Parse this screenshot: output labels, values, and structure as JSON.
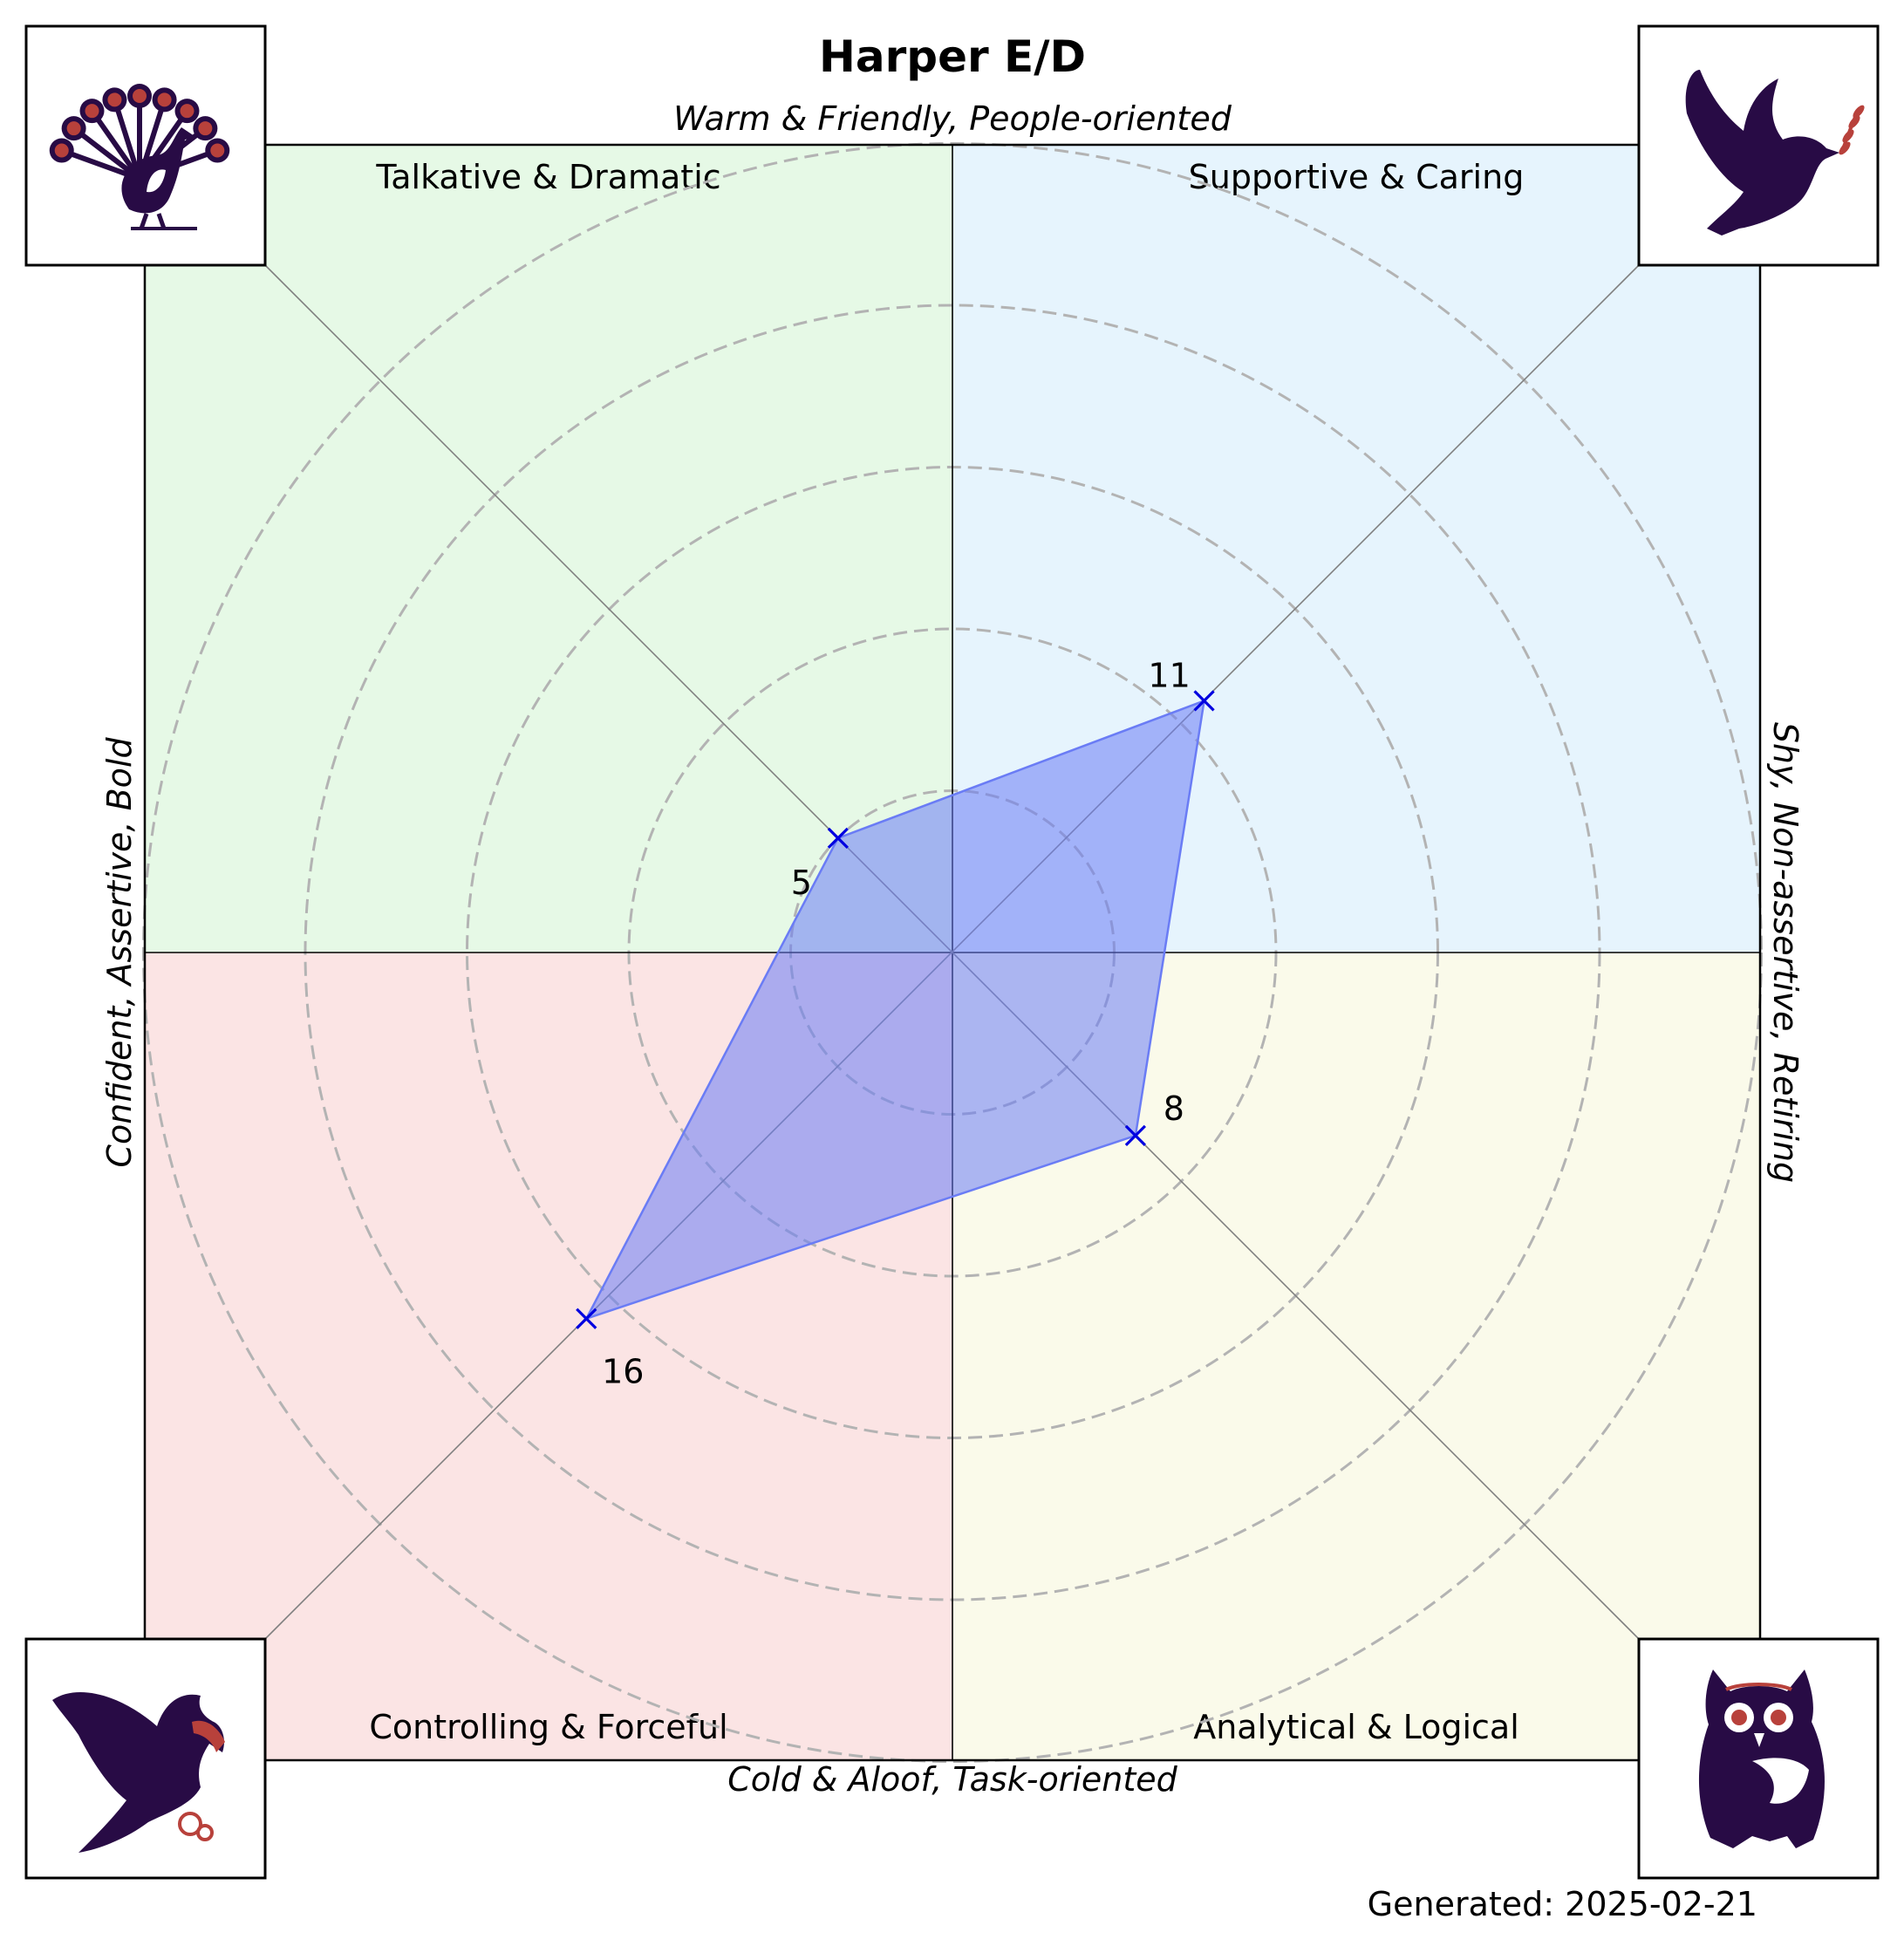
{
  "chart_data": {
    "type": "radar",
    "title": "Harper E/D",
    "axis_labels": {
      "top": "Warm & Friendly, People-oriented",
      "bottom": "Cold & Aloof, Task-oriented",
      "left": "Confident, Assertive, Bold",
      "right": "Shy, Non-assertive, Retiring"
    },
    "quadrants": [
      {
        "id": "top-left",
        "label": "Talkative & Dramatic",
        "color": "#e6f9e6",
        "icon": "peacock-icon"
      },
      {
        "id": "top-right",
        "label": "Supportive & Caring",
        "color": "#e6f4fd",
        "icon": "dove-icon"
      },
      {
        "id": "bottom-left",
        "label": "Controlling & Forceful",
        "color": "#fbe4e4",
        "icon": "eagle-icon"
      },
      {
        "id": "bottom-right",
        "label": "Analytical & Logical",
        "color": "#fafaea",
        "icon": "owl-icon"
      }
    ],
    "scale_max": 25,
    "ring_step": 5,
    "points": [
      {
        "quadrant": "top-left",
        "value": 5
      },
      {
        "quadrant": "top-right",
        "value": 11
      },
      {
        "quadrant": "bottom-right",
        "value": 8
      },
      {
        "quadrant": "bottom-left",
        "value": 16
      }
    ],
    "fill_color": "#6a7cf5",
    "marker_color": "#0000e0",
    "icon_dark": "#280b45",
    "icon_accent": "#b8413b",
    "footer": "Generated: 2025-02-21"
  }
}
